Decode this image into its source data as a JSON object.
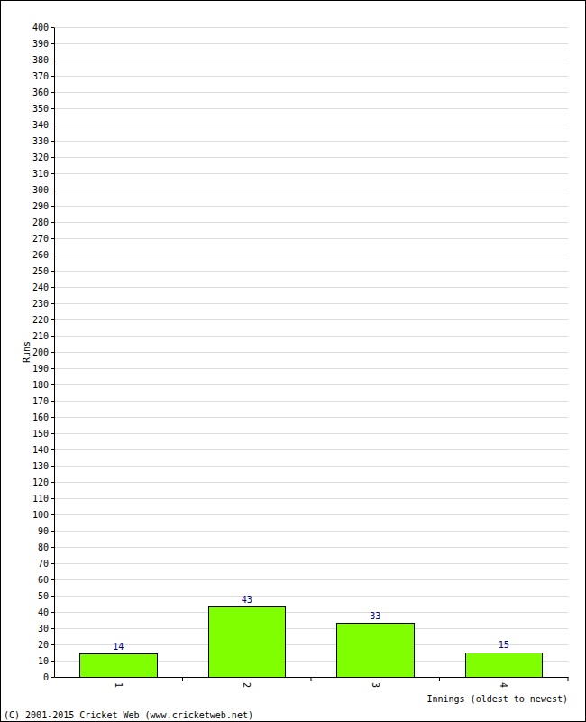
{
  "chart_data": {
    "type": "bar",
    "categories": [
      "1",
      "2",
      "3",
      "4"
    ],
    "values": [
      14,
      43,
      33,
      15
    ],
    "color": "#80ff00",
    "ylim": [
      0,
      400
    ],
    "yticks": [
      0,
      10,
      20,
      30,
      40,
      50,
      60,
      70,
      80,
      90,
      100,
      110,
      120,
      130,
      140,
      150,
      160,
      170,
      180,
      190,
      200,
      210,
      220,
      230,
      240,
      250,
      260,
      270,
      280,
      290,
      300,
      310,
      320,
      330,
      340,
      350,
      360,
      370,
      380,
      390,
      400
    ],
    "grid": true,
    "data_labels": true,
    "y_label": "Runs",
    "x_label": "Innings (oldest to newest)",
    "annotations": [
      "(C) 2001-2015 Cricket Web (www.cricketweb.net)"
    ]
  }
}
